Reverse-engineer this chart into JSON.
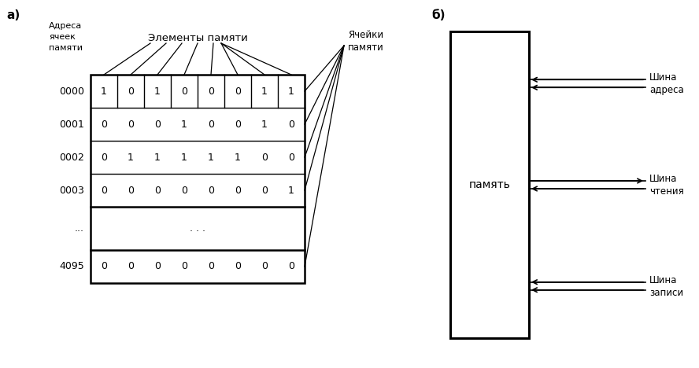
{
  "panel_a_label": "а)",
  "panel_b_label": "б)",
  "addr_label_line1": "Адреса",
  "addr_label_line2": "ячеек",
  "addr_label_line3": "памяти",
  "elements_label": "Элементы памяти",
  "cells_label_line1": "Ячейки",
  "cells_label_line2": "памяти",
  "addresses": [
    "0000",
    "0001",
    "0002",
    "0003",
    "...",
    "4095"
  ],
  "rows": [
    [
      1,
      0,
      1,
      0,
      0,
      0,
      1,
      1
    ],
    [
      0,
      0,
      0,
      1,
      0,
      0,
      1,
      0
    ],
    [
      0,
      1,
      1,
      1,
      1,
      1,
      0,
      0
    ],
    [
      0,
      0,
      0,
      0,
      0,
      0,
      0,
      1
    ],
    null,
    [
      0,
      0,
      0,
      0,
      0,
      0,
      0,
      0
    ]
  ],
  "memory_label": "память",
  "bus_addr_line1": "Шина",
  "bus_addr_line2": "адреса",
  "bus_read_line1": "Шина",
  "bus_read_line2": "чтения",
  "bus_write_line1": "Шина",
  "bus_write_line2": "записи",
  "bg_color": "#ffffff",
  "fg_color": "#000000"
}
